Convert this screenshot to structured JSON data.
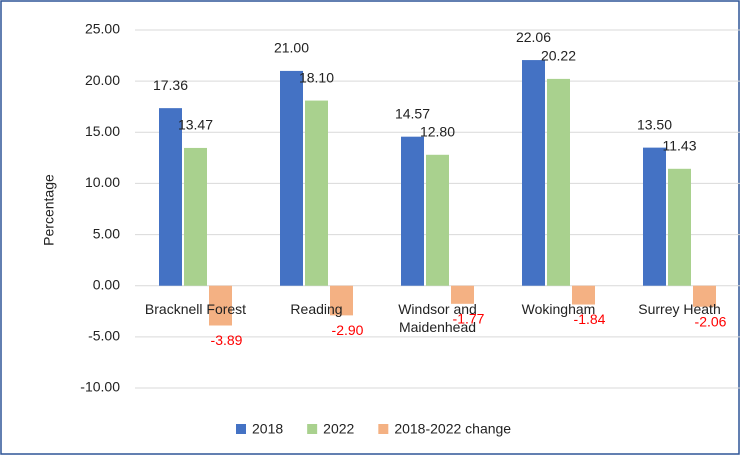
{
  "chart_data": {
    "type": "bar",
    "y_label": "Percentage",
    "categories": [
      "Bracknell Forest",
      "Reading",
      "Windsor and Maidenhead",
      "Wokingham",
      "Surrey Heath"
    ],
    "series": [
      {
        "name": "2018",
        "color": "#4472c4",
        "values": [
          17.36,
          21.0,
          14.57,
          22.06,
          13.5
        ],
        "value_labels": [
          "17.36",
          "21.00",
          "14.57",
          "22.06",
          "13.50"
        ]
      },
      {
        "name": "2022",
        "color": "#a9d18e",
        "values": [
          13.47,
          18.1,
          12.8,
          20.22,
          11.43
        ],
        "value_labels": [
          "13.47",
          "18.10",
          "12.80",
          "20.22",
          "11.43"
        ]
      },
      {
        "name": "2018-2022 change",
        "color": "#f4b183",
        "values": [
          -3.89,
          -2.9,
          -1.77,
          -1.84,
          -2.06
        ],
        "value_labels": [
          "-3.89",
          "-2.90",
          "-1.77",
          "-1.84",
          "-2.06"
        ]
      }
    ],
    "ylim": [
      -10,
      25
    ],
    "yticks": [
      {
        "value": -10,
        "label": "-10.00"
      },
      {
        "value": -5,
        "label": "-5.00"
      },
      {
        "value": 0,
        "label": "0.00"
      },
      {
        "value": 5,
        "label": "5.00"
      },
      {
        "value": 10,
        "label": "10.00"
      },
      {
        "value": 15,
        "label": "15.00"
      },
      {
        "value": 20,
        "label": "20.00"
      },
      {
        "value": 25,
        "label": "25.00"
      }
    ],
    "grid": true,
    "legend": "bottom"
  }
}
